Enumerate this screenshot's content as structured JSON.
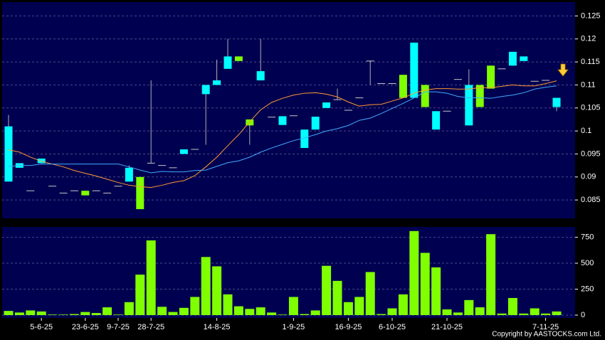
{
  "chart_data": [
    {
      "type": "candlestick",
      "categories": [
        null,
        null,
        null,
        "5-6-25",
        null,
        null,
        null,
        "23-6-25",
        null,
        null,
        "9-7-25",
        null,
        null,
        "28-7-25",
        null,
        null,
        null,
        null,
        null,
        "14-8-25",
        null,
        null,
        null,
        null,
        null,
        null,
        "1-9-25",
        null,
        null,
        null,
        null,
        "16-9-25",
        null,
        null,
        null,
        "6-10-25",
        null,
        null,
        null,
        null,
        "21-10-25",
        null,
        null,
        null,
        null,
        null,
        null,
        null,
        null,
        "7-11-25",
        null
      ],
      "open": [
        0.089,
        0.092,
        0.087,
        0.093,
        0.088,
        0.0865,
        0.087,
        0.087,
        0.087,
        0.0865,
        0.088,
        0.089,
        0.09,
        0.093,
        0.0925,
        0.092,
        0.095,
        0.096,
        0.108,
        0.11,
        0.1135,
        0.1162,
        0.1025,
        0.111,
        0.103,
        0.1013,
        0.1033,
        0.0963,
        0.1003,
        0.105,
        0.1068,
        0.1045,
        0.1072,
        0.1152,
        0.1103,
        0.1103,
        0.1122,
        0.1072,
        0.11,
        0.1003,
        0.1043,
        0.1112,
        0.1012,
        0.11,
        0.1142,
        0.1135,
        0.1142,
        0.1152,
        0.1108,
        0.111,
        0.1052
      ],
      "high": [
        0.1035,
        0.093,
        0.087,
        0.094,
        0.088,
        0.0865,
        0.087,
        0.087,
        0.087,
        0.0865,
        0.088,
        0.0925,
        0.09,
        0.111,
        0.0925,
        0.092,
        0.096,
        0.096,
        0.11,
        0.1155,
        0.12,
        0.1162,
        0.1025,
        0.12,
        0.103,
        0.1032,
        0.1033,
        0.1003,
        0.1031,
        0.1062,
        0.1092,
        0.1045,
        0.1072,
        0.1152,
        0.1103,
        0.1103,
        0.1122,
        0.1192,
        0.11,
        0.1043,
        0.1043,
        0.1112,
        0.1134,
        0.11,
        0.1142,
        0.1135,
        0.1172,
        0.1162,
        0.1108,
        0.111,
        0.1072
      ],
      "low": [
        0.089,
        0.092,
        0.087,
        0.093,
        0.088,
        0.0865,
        0.087,
        0.086,
        0.087,
        0.0865,
        0.088,
        0.089,
        0.083,
        0.093,
        0.0925,
        0.092,
        0.095,
        0.096,
        0.097,
        0.11,
        0.1135,
        0.1152,
        0.097,
        0.111,
        0.103,
        0.1013,
        0.1033,
        0.0963,
        0.1003,
        0.105,
        0.1068,
        0.1045,
        0.1072,
        0.11,
        0.1103,
        0.1103,
        0.1072,
        0.1072,
        0.1052,
        0.1003,
        0.1043,
        0.1112,
        0.1012,
        0.1052,
        0.1092,
        0.1135,
        0.1142,
        0.1152,
        0.1108,
        0.111,
        0.1043
      ],
      "close": [
        0.101,
        0.093,
        0.087,
        0.094,
        0.088,
        0.0865,
        0.087,
        0.086,
        0.087,
        0.0865,
        0.088,
        0.092,
        0.083,
        0.093,
        0.0925,
        0.092,
        0.096,
        0.096,
        0.11,
        0.111,
        0.1162,
        0.1152,
        0.1012,
        0.113,
        0.103,
        0.1032,
        0.1033,
        0.1003,
        0.1031,
        0.1062,
        0.1068,
        0.1045,
        0.1072,
        0.1152,
        0.1103,
        0.1103,
        0.1072,
        0.1192,
        0.1052,
        0.1043,
        0.1043,
        0.1112,
        0.11,
        0.1052,
        0.1092,
        0.1135,
        0.1172,
        0.1162,
        0.1108,
        0.111,
        0.1072
      ],
      "up_color": "#00ffff",
      "down_color": "#80ff00",
      "flat_color": "#c8c8c8",
      "wick_color": "#b0b0b0",
      "lines": [
        {
          "color": "#ff9933",
          "values": [
            0.0959,
            0.0954,
            0.0943,
            0.0934,
            0.0928,
            0.0922,
            0.0914,
            0.0908,
            0.0902,
            0.0895,
            0.0888,
            0.0882,
            0.0879,
            0.0877,
            0.0882,
            0.0888,
            0.0892,
            0.0903,
            0.0922,
            0.0943,
            0.0968,
            0.0992,
            0.102,
            0.1046,
            0.1062,
            0.1071,
            0.1078,
            0.1082,
            0.1083,
            0.108,
            0.1074,
            0.1063,
            0.1054,
            0.1057,
            0.1058,
            0.1065,
            0.1072,
            0.1082,
            0.1089,
            0.1092,
            0.1092,
            0.1091,
            0.1091,
            0.1094,
            0.1094,
            0.1097,
            0.11,
            0.1098,
            0.1098,
            0.1103,
            0.1109
          ]
        },
        {
          "color": "#44aaff",
          "values": [
            0.0923,
            0.0925,
            0.0925,
            0.0928,
            0.0928,
            0.0928,
            0.0928,
            0.0928,
            0.0928,
            0.0928,
            0.0928,
            0.0922,
            0.0915,
            0.0909,
            0.0912,
            0.0911,
            0.0911,
            0.0914,
            0.0915,
            0.0923,
            0.0931,
            0.0935,
            0.0943,
            0.0954,
            0.0963,
            0.0971,
            0.0979,
            0.0985,
            0.0992,
            0.1,
            0.1005,
            0.1012,
            0.1023,
            0.1028,
            0.1038,
            0.1049,
            0.106,
            0.1072,
            0.1085,
            0.1085,
            0.1082,
            0.1075,
            0.1072,
            0.1072,
            0.1071,
            0.1075,
            0.1078,
            0.1083,
            0.1091,
            0.1095,
            0.1098
          ]
        }
      ],
      "ylim": [
        0.081,
        0.128
      ],
      "yticks": [
        0.085,
        0.09,
        0.095,
        0.1,
        0.105,
        0.11,
        0.115,
        0.12,
        0.125
      ],
      "grid": true
    },
    {
      "type": "bar",
      "values": [
        40,
        25,
        45,
        35,
        5,
        5,
        10,
        30,
        20,
        75,
        5,
        125,
        390,
        720,
        80,
        30,
        70,
        175,
        560,
        470,
        200,
        85,
        60,
        75,
        25,
        5,
        175,
        10,
        45,
        475,
        330,
        125,
        175,
        415,
        10,
        65,
        200,
        810,
        600,
        460,
        55,
        25,
        145,
        75,
        780,
        15,
        165,
        15,
        65,
        15,
        35
      ],
      "color": "#80ff00",
      "ylim": [
        0,
        850
      ],
      "yticks": [
        0,
        250,
        500,
        750
      ],
      "grid": true
    }
  ],
  "footer": "Copyright by AASTOCKS.com Ltd."
}
